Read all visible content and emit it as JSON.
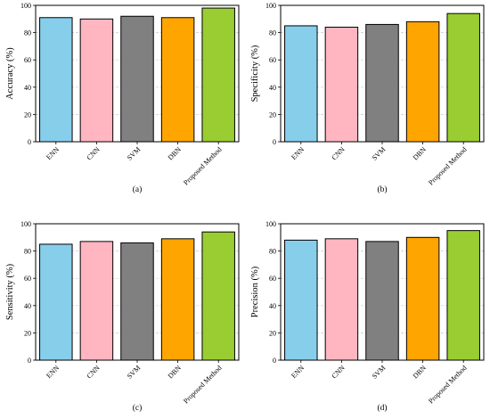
{
  "chart_data": [
    {
      "type": "bar",
      "panel_label": "(a)",
      "categories": [
        "ENN",
        "CNN",
        "SVM",
        "DBN",
        "Proposed Method"
      ],
      "values": [
        91,
        90,
        92,
        91,
        98
      ],
      "ylabel": "Accuracy (%)",
      "ylim": [
        0,
        100
      ],
      "yticks": [
        0,
        20,
        40,
        60,
        80,
        100
      ],
      "grid": "horizontal dashed",
      "colors": [
        "#87ceeb",
        "#ffb6c1",
        "#808080",
        "#ffa500",
        "#9acd32"
      ]
    },
    {
      "type": "bar",
      "panel_label": "(b)",
      "categories": [
        "ENN",
        "CNN",
        "SVM",
        "DBN",
        "Proposed Method"
      ],
      "values": [
        85,
        84,
        86,
        88,
        94
      ],
      "ylabel": "Specificity (%)",
      "ylim": [
        0,
        100
      ],
      "yticks": [
        0,
        20,
        40,
        60,
        80,
        100
      ],
      "grid": "horizontal dashed",
      "colors": [
        "#87ceeb",
        "#ffb6c1",
        "#808080",
        "#ffa500",
        "#9acd32"
      ]
    },
    {
      "type": "bar",
      "panel_label": "(c)",
      "categories": [
        "ENN",
        "CNN",
        "SVM",
        "DBN",
        "Proposed Method"
      ],
      "values": [
        85,
        87,
        86,
        89,
        94
      ],
      "ylabel": "Sensitivity (%)",
      "ylim": [
        0,
        100
      ],
      "yticks": [
        0,
        20,
        40,
        60,
        80,
        100
      ],
      "grid": "horizontal dashed",
      "colors": [
        "#87ceeb",
        "#ffb6c1",
        "#808080",
        "#ffa500",
        "#9acd32"
      ]
    },
    {
      "type": "bar",
      "panel_label": "(d)",
      "categories": [
        "ENN",
        "CNN",
        "SVM",
        "DBN",
        "Proposed Method"
      ],
      "values": [
        88,
        89,
        87,
        90,
        95
      ],
      "ylabel": "Precision (%)",
      "ylim": [
        0,
        100
      ],
      "yticks": [
        0,
        20,
        40,
        60,
        80,
        100
      ],
      "grid": "horizontal dashed",
      "colors": [
        "#87ceeb",
        "#ffb6c1",
        "#808080",
        "#ffa500",
        "#9acd32"
      ]
    }
  ]
}
